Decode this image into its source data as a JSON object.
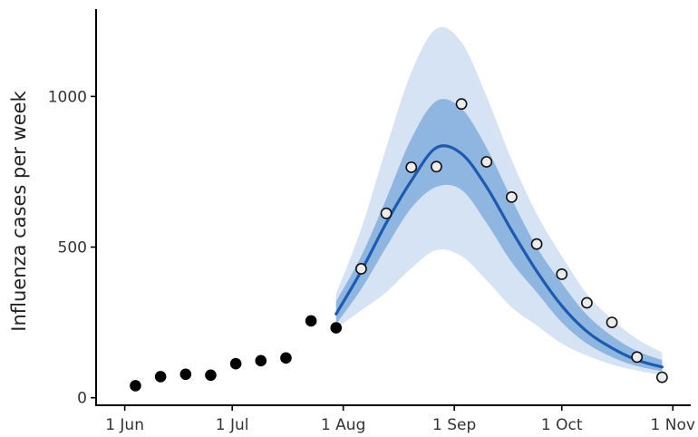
{
  "chart_data": {
    "type": "line",
    "title": "",
    "xlabel": "",
    "ylabel": "Influenza cases per week",
    "x_axis": {
      "ticks": [
        "2023-06-01",
        "2023-07-01",
        "2023-08-01",
        "2023-09-01",
        "2023-10-01",
        "2023-11-01"
      ],
      "tick_labels": [
        "1 Jun",
        "1 Jul",
        "1 Aug",
        "1 Sep",
        "1 Oct",
        "1 Nov"
      ],
      "range": [
        "2023-05-24",
        "2023-11-06"
      ]
    },
    "y_axis": {
      "ticks": [
        0,
        500,
        1000
      ],
      "tick_labels": [
        "0",
        "500",
        "1000"
      ],
      "range": [
        -25,
        1290
      ]
    },
    "grid": false,
    "legend": "none",
    "series": [
      {
        "kind": "observed",
        "marker": "filled-circle",
        "color": "#000000",
        "points": [
          {
            "x": "2023-06-04",
            "y": 40
          },
          {
            "x": "2023-06-11",
            "y": 70
          },
          {
            "x": "2023-06-18",
            "y": 78
          },
          {
            "x": "2023-06-25",
            "y": 75
          },
          {
            "x": "2023-07-02",
            "y": 113
          },
          {
            "x": "2023-07-09",
            "y": 123
          },
          {
            "x": "2023-07-16",
            "y": 132
          },
          {
            "x": "2023-07-23",
            "y": 255
          },
          {
            "x": "2023-07-30",
            "y": 232
          }
        ]
      },
      {
        "kind": "held-out",
        "marker": "open-circle",
        "color": "#ececec",
        "points": [
          {
            "x": "2023-08-06",
            "y": 428
          },
          {
            "x": "2023-08-13",
            "y": 612
          },
          {
            "x": "2023-08-20",
            "y": 765
          },
          {
            "x": "2023-08-27",
            "y": 767
          },
          {
            "x": "2023-09-03",
            "y": 975
          },
          {
            "x": "2023-09-10",
            "y": 783
          },
          {
            "x": "2023-09-17",
            "y": 666
          },
          {
            "x": "2023-09-24",
            "y": 510
          },
          {
            "x": "2023-10-01",
            "y": 410
          },
          {
            "x": "2023-10-08",
            "y": 315
          },
          {
            "x": "2023-10-15",
            "y": 250
          },
          {
            "x": "2023-10-22",
            "y": 135
          },
          {
            "x": "2023-10-29",
            "y": 68
          }
        ]
      },
      {
        "kind": "forecast",
        "color": "#1c5bb0",
        "inner_band_color": "#8fb6e0",
        "outer_band_color": "#d6e3f5",
        "points": [
          {
            "x": "2023-07-30",
            "median": 278,
            "inner": [
              245,
              320
            ],
            "outer": [
              230,
              345
            ]
          },
          {
            "x": "2023-08-06",
            "median": 420,
            "inner": [
              360,
              470
            ],
            "outer": [
              290,
              560
            ]
          },
          {
            "x": "2023-08-13",
            "median": 580,
            "inner": [
              500,
              660
            ],
            "outer": [
              350,
              830
            ]
          },
          {
            "x": "2023-08-20",
            "median": 720,
            "inner": [
              630,
              860
            ],
            "outer": [
              430,
              1080
            ]
          },
          {
            "x": "2023-08-27",
            "median": 830,
            "inner": [
              700,
              985
            ],
            "outer": [
              490,
              1225
            ]
          },
          {
            "x": "2023-09-03",
            "median": 810,
            "inner": [
              690,
              960
            ],
            "outer": [
              470,
              1180
            ]
          },
          {
            "x": "2023-09-10",
            "median": 700,
            "inner": [
              580,
              830
            ],
            "outer": [
              390,
              1000
            ]
          },
          {
            "x": "2023-09-17",
            "median": 555,
            "inner": [
              450,
              660
            ],
            "outer": [
              300,
              790
            ]
          },
          {
            "x": "2023-09-24",
            "median": 420,
            "inner": [
              350,
              500
            ],
            "outer": [
              240,
              610
            ]
          },
          {
            "x": "2023-10-01",
            "median": 305,
            "inner": [
              250,
              380
            ],
            "outer": [
              180,
              470
            ]
          },
          {
            "x": "2023-10-08",
            "median": 220,
            "inner": [
              180,
              275
            ],
            "outer": [
              140,
              345
            ]
          },
          {
            "x": "2023-10-15",
            "median": 165,
            "inner": [
              135,
              205
            ],
            "outer": [
              110,
              260
            ]
          },
          {
            "x": "2023-10-22",
            "median": 125,
            "inner": [
              105,
              155
            ],
            "outer": [
              90,
              195
            ]
          },
          {
            "x": "2023-10-29",
            "median": 102,
            "inner": [
              88,
              125
            ],
            "outer": [
              75,
              150
            ]
          }
        ]
      }
    ]
  }
}
